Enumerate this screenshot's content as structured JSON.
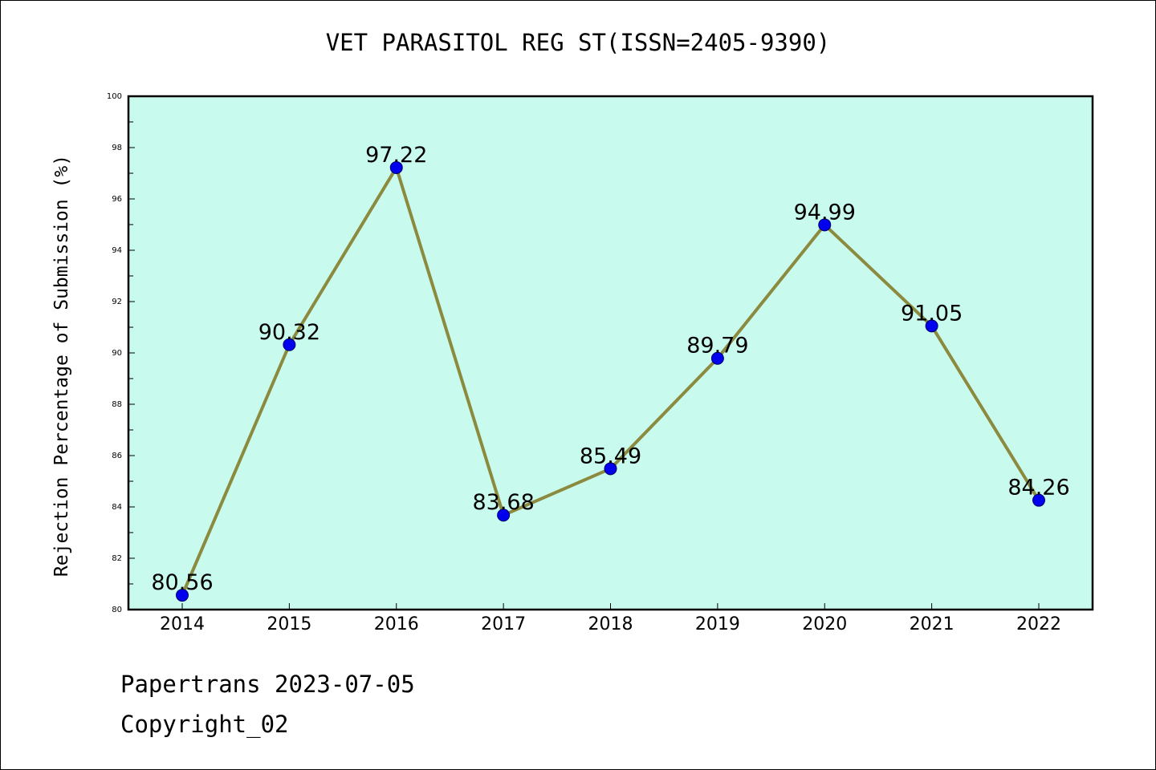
{
  "chart_data": {
    "type": "line",
    "title": "VET PARASITOL REG ST(ISSN=2405-9390)",
    "xlabel": "",
    "ylabel": "Rejection Percentage of Submission (%)",
    "categories": [
      "2014",
      "2015",
      "2016",
      "2017",
      "2018",
      "2019",
      "2020",
      "2021",
      "2022"
    ],
    "series": [
      {
        "values": [
          80.56,
          90.32,
          97.22,
          83.68,
          85.49,
          89.79,
          94.99,
          91.05,
          84.26
        ],
        "labels": [
          "80.56",
          "90.32",
          "97.22",
          "83.68",
          "85.49",
          "89.79",
          "94.99",
          "91.05",
          "84.26"
        ]
      }
    ],
    "ylim": [
      80,
      100
    ],
    "yticks": [
      "80",
      "82",
      "84",
      "86",
      "88",
      "90",
      "92",
      "94",
      "96",
      "98",
      "100"
    ],
    "grid": false,
    "legend": "none",
    "colors": {
      "plot_background": "#c8fbee",
      "line": "#8b8a3e",
      "marker": "#0000ee",
      "axes": "#000000"
    }
  },
  "footer": {
    "line1": "Papertrans 2023-07-05",
    "line2": "Copyright_02"
  }
}
